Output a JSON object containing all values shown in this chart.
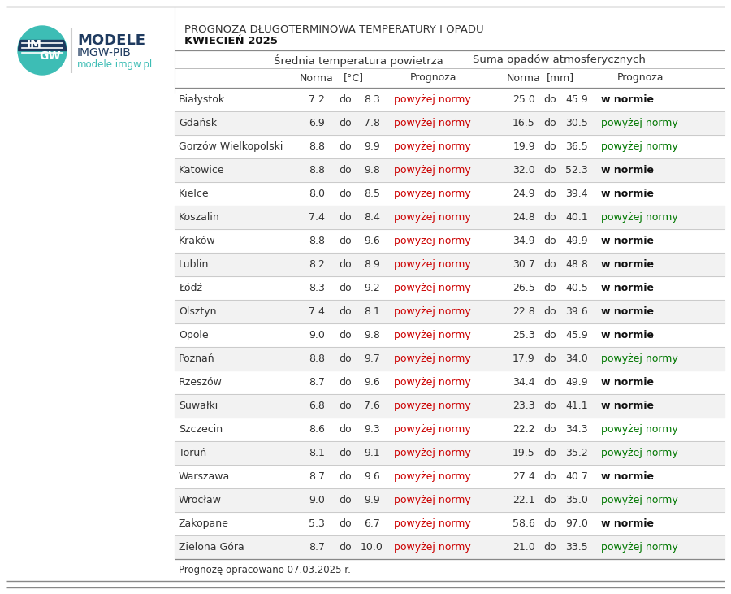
{
  "title_line1": "PROGNOZA DŁUGOTERMINOWA TEMPERATURY I OPADU",
  "title_line2": "KWIECIEŃ 2025",
  "header1": "Średnía temperatura powietrza",
  "header2": "Suma opadów atmosferycznych",
  "footer": "Prognozę opracowano 07.03.2025 r.",
  "cities": [
    "Białystok",
    "Gdańsk",
    "Gorzów Wielkopolski",
    "Katowice",
    "Kielce",
    "Koszalin",
    "Kraków",
    "Lublin",
    "Łódź",
    "Olsztyn",
    "Opole",
    "Poznań",
    "Rzeszów",
    "Suwałki",
    "Szczecin",
    "Toruń",
    "Warszawa",
    "Wrocław",
    "Zakopane",
    "Zielona Góra"
  ],
  "temp_norma_low": [
    7.2,
    6.9,
    8.8,
    8.8,
    8.0,
    7.4,
    8.8,
    8.2,
    8.3,
    7.4,
    9.0,
    8.8,
    8.7,
    6.8,
    8.6,
    8.1,
    8.7,
    9.0,
    5.3,
    8.7
  ],
  "temp_norma_high": [
    8.3,
    7.8,
    9.9,
    9.8,
    8.5,
    8.4,
    9.6,
    8.9,
    9.2,
    8.1,
    9.8,
    9.7,
    9.6,
    7.6,
    9.3,
    9.1,
    9.6,
    9.9,
    6.7,
    10.0
  ],
  "temp_prognoza": [
    "powyżej normy",
    "powyżej normy",
    "powyżej normy",
    "powyżej normy",
    "powyżej normy",
    "powyżej normy",
    "powyżej normy",
    "powyżej normy",
    "powyżej normy",
    "powyżej normy",
    "powyżej normy",
    "powyżej normy",
    "powyżej normy",
    "powyżej normy",
    "powyżej normy",
    "powyżej normy",
    "powyżej normy",
    "powyżej normy",
    "powyżej normy",
    "powyżej normy"
  ],
  "precip_norma_low": [
    25.0,
    16.5,
    19.9,
    32.0,
    24.9,
    24.8,
    34.9,
    30.7,
    26.5,
    22.8,
    25.3,
    17.9,
    34.4,
    23.3,
    22.2,
    19.5,
    27.4,
    22.1,
    58.6,
    21.0
  ],
  "precip_norma_high": [
    45.9,
    30.5,
    36.5,
    52.3,
    39.4,
    40.1,
    49.9,
    48.8,
    40.5,
    39.6,
    45.9,
    34.0,
    49.9,
    41.1,
    34.3,
    35.2,
    40.7,
    35.0,
    97.0,
    33.5
  ],
  "precip_prognoza": [
    "w normie",
    "powyżej normy",
    "powyżej normy",
    "w normie",
    "w normie",
    "powyżej normy",
    "w normie",
    "w normie",
    "w normie",
    "w normie",
    "w normie",
    "powyżej normy",
    "w normie",
    "w normie",
    "powyżej normy",
    "powyżej normy",
    "w normie",
    "powyżej normy",
    "w normie",
    "powyżej normy"
  ],
  "color_red": "#cc0000",
  "color_green": "#007700",
  "color_dark": "#333333",
  "color_black": "#111111",
  "bg_white": "#ffffff",
  "line_gray": "#bbbbbb",
  "line_dark": "#888888",
  "logo_teal": "#3dbdb5",
  "logo_navy": "#1e3a5f",
  "logo_url_teal": "#3dbdb5"
}
